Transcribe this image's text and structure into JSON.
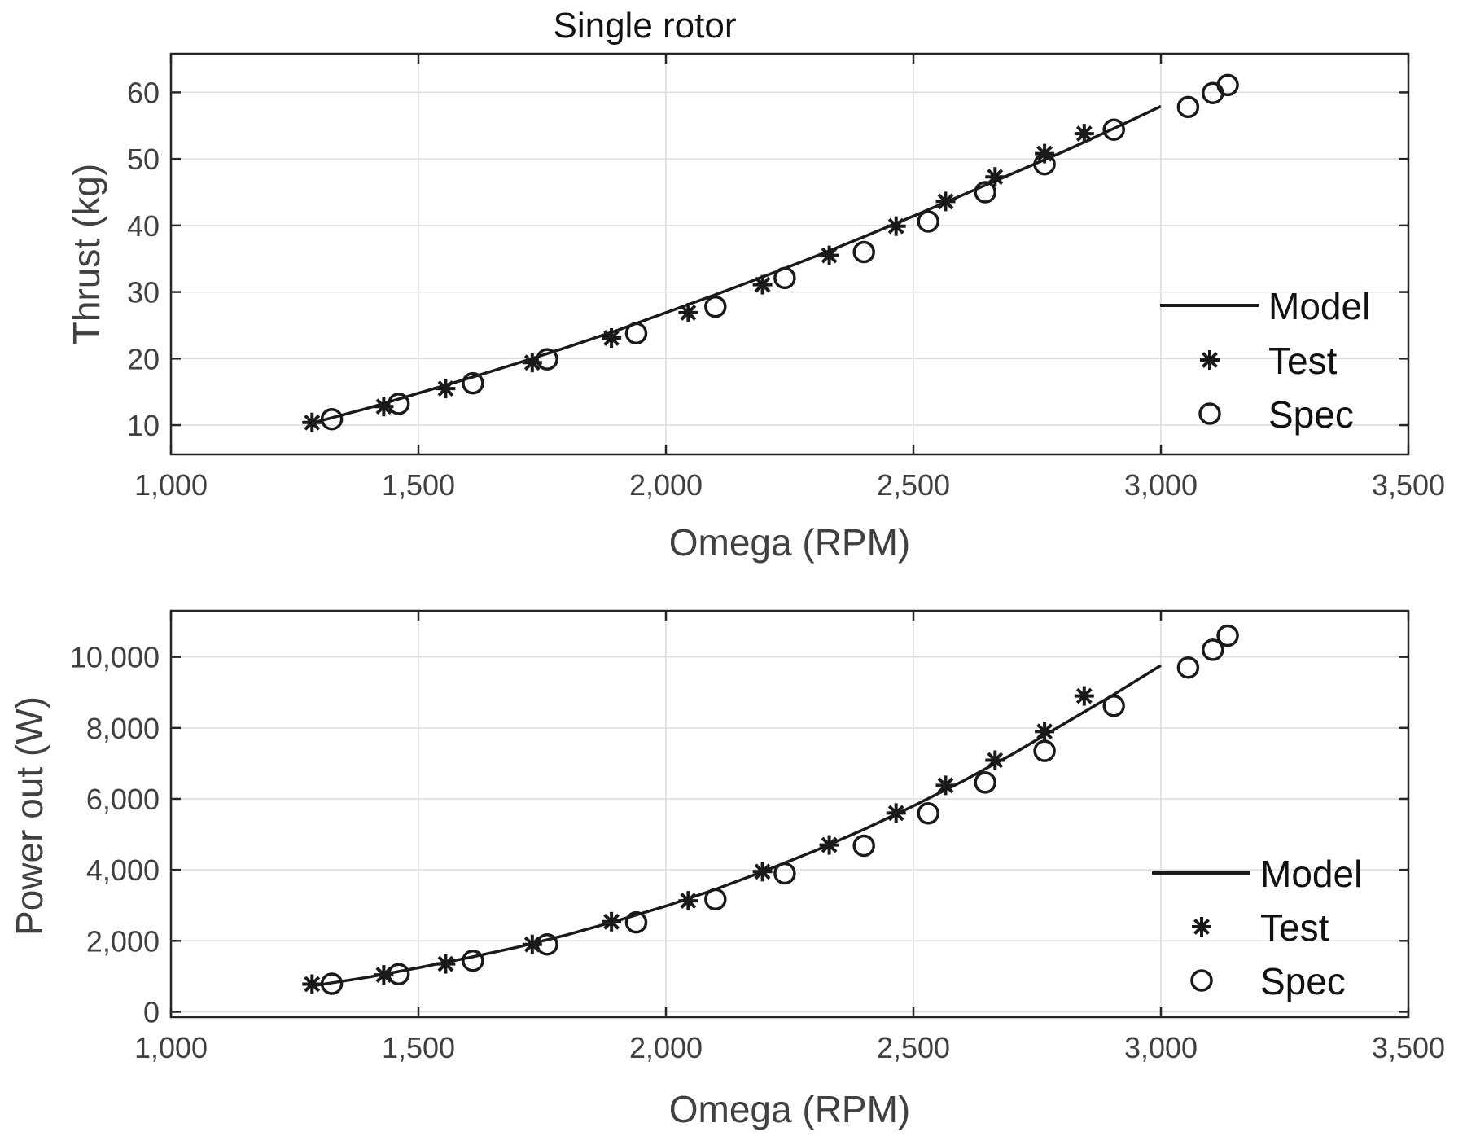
{
  "chart_data": [
    {
      "type": "line",
      "title": "Single rotor",
      "xlabel": "Omega (RPM)",
      "ylabel": "Thrust (kg)",
      "xlim": [
        1000,
        3500
      ],
      "ylim": [
        5.6,
        65.8
      ],
      "xticks": [
        1000,
        1500,
        2000,
        2500,
        3000,
        3500
      ],
      "xtick_labels": [
        "1,000",
        "1,500",
        "2,000",
        "2,500",
        "3,000",
        "3,500"
      ],
      "yticks": [
        10,
        20,
        30,
        40,
        50,
        60
      ],
      "ytick_labels": [
        "10",
        "20",
        "30",
        "40",
        "50",
        "60"
      ],
      "grid": true,
      "legend_position": "right",
      "series": [
        {
          "name": "Model",
          "kind": "line",
          "x": [
            1280,
            1300,
            1400,
            1500,
            1600,
            1700,
            1800,
            1900,
            2000,
            2100,
            2200,
            2300,
            2400,
            2500,
            2600,
            2700,
            2800,
            2900,
            3000
          ],
          "y": [
            10.2,
            10.6,
            12.6,
            14.8,
            17.0,
            19.3,
            21.7,
            24.2,
            26.9,
            29.6,
            32.4,
            35.3,
            38.3,
            41.4,
            44.6,
            47.8,
            51.0,
            54.4,
            57.9
          ]
        },
        {
          "name": "Test",
          "kind": "star",
          "x": [
            1285,
            1430,
            1555,
            1730,
            1890,
            2045,
            2195,
            2330,
            2465,
            2565,
            2665,
            2765,
            2845
          ],
          "y": [
            10.4,
            12.8,
            15.5,
            19.4,
            23.1,
            26.9,
            31.1,
            35.5,
            39.9,
            43.6,
            47.3,
            50.8,
            53.8
          ]
        },
        {
          "name": "Spec",
          "kind": "circle",
          "x": [
            1325,
            1460,
            1610,
            1760,
            1940,
            2100,
            2240,
            2400,
            2530,
            2645,
            2765,
            2905,
            3055,
            3105,
            3135
          ],
          "y": [
            10.9,
            13.2,
            16.3,
            19.9,
            23.8,
            27.8,
            32.1,
            36.0,
            40.6,
            45.0,
            49.2,
            54.4,
            57.8,
            59.9,
            61.1
          ]
        }
      ]
    },
    {
      "type": "line",
      "title": "",
      "xlabel": "Omega (RPM)",
      "ylabel": "Power out (W)",
      "xlim": [
        1000,
        3500
      ],
      "ylim": [
        -150,
        11300
      ],
      "xticks": [
        1000,
        1500,
        2000,
        2500,
        3000,
        3500
      ],
      "xtick_labels": [
        "1,000",
        "1,500",
        "2,000",
        "2,500",
        "3,000",
        "3,500"
      ],
      "yticks": [
        0,
        2000,
        4000,
        6000,
        8000,
        10000
      ],
      "ytick_labels": [
        "0",
        "2,000",
        "4,000",
        "6,000",
        "8,000",
        "10,000"
      ],
      "grid": true,
      "legend_position": "right",
      "series": [
        {
          "name": "Model",
          "kind": "line",
          "x": [
            1280,
            1300,
            1400,
            1500,
            1600,
            1700,
            1800,
            1900,
            2000,
            2100,
            2200,
            2300,
            2400,
            2500,
            2600,
            2700,
            2800,
            2900,
            3000
          ],
          "y": [
            720,
            760,
            980,
            1240,
            1520,
            1820,
            2170,
            2560,
            2980,
            3450,
            3970,
            4530,
            5140,
            5800,
            6500,
            7260,
            8080,
            8900,
            9760
          ]
        },
        {
          "name": "Test",
          "kind": "star",
          "x": [
            1285,
            1430,
            1555,
            1730,
            1890,
            2045,
            2195,
            2330,
            2465,
            2565,
            2665,
            2765,
            2845
          ],
          "y": [
            780,
            1040,
            1350,
            1900,
            2540,
            3130,
            3950,
            4700,
            5600,
            6380,
            7090,
            7900,
            8900
          ]
        },
        {
          "name": "Spec",
          "kind": "circle",
          "x": [
            1325,
            1460,
            1610,
            1760,
            1940,
            2100,
            2240,
            2400,
            2530,
            2645,
            2765,
            2905,
            3055,
            3105,
            3135
          ],
          "y": [
            790,
            1060,
            1440,
            1900,
            2520,
            3170,
            3900,
            4680,
            5590,
            6460,
            7350,
            8620,
            9700,
            10200,
            10600
          ]
        }
      ]
    }
  ]
}
